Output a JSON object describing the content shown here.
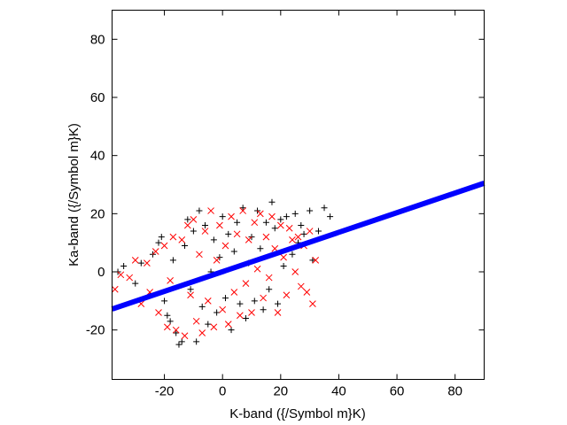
{
  "chart_data": {
    "type": "scatter",
    "title": "",
    "xlabel": "K-band ({/Symbol m}K)",
    "ylabel": "Ka-band ({/Symbol m}K)",
    "xlim": [
      -38,
      90
    ],
    "ylim": [
      -37,
      90
    ],
    "xticks": [
      -20,
      0,
      20,
      40,
      60,
      80
    ],
    "yticks": [
      -20,
      0,
      20,
      40,
      60,
      80
    ],
    "xtick_labels": [
      "-20",
      "0",
      "20",
      "40",
      "60",
      "80"
    ],
    "ytick_labels": [
      "-20",
      "0",
      "20",
      "40",
      "60",
      "80"
    ],
    "grid": false,
    "legend": "none",
    "series": [
      {
        "marker": "plus",
        "color": "#000000",
        "description": "dense cloud of points, roughly centred near (0, 0), spanning about x -35..38 and y -25..25",
        "values": [
          [
            -36,
            0
          ],
          [
            -34,
            2
          ],
          [
            -30,
            -4
          ],
          [
            -28,
            3
          ],
          [
            -25,
            -8
          ],
          [
            -24,
            6
          ],
          [
            -22,
            10
          ],
          [
            -21,
            12
          ],
          [
            -20,
            -10
          ],
          [
            -19,
            -15
          ],
          [
            -18,
            -17
          ],
          [
            -17,
            4
          ],
          [
            -16,
            -21
          ],
          [
            -15,
            -25
          ],
          [
            -14,
            -24
          ],
          [
            -13,
            9
          ],
          [
            -12,
            18
          ],
          [
            -11,
            -6
          ],
          [
            -10,
            14
          ],
          [
            -9,
            -24
          ],
          [
            -8,
            21
          ],
          [
            -7,
            -12
          ],
          [
            -6,
            16
          ],
          [
            -5,
            -18
          ],
          [
            -4,
            0
          ],
          [
            -3,
            11
          ],
          [
            -2,
            -14
          ],
          [
            -1,
            5
          ],
          [
            0,
            19
          ],
          [
            1,
            -9
          ],
          [
            2,
            13
          ],
          [
            3,
            -20
          ],
          [
            4,
            7
          ],
          [
            5,
            17
          ],
          [
            6,
            -11
          ],
          [
            7,
            22
          ],
          [
            8,
            -16
          ],
          [
            9,
            3
          ],
          [
            10,
            12
          ],
          [
            11,
            -10
          ],
          [
            12,
            21
          ],
          [
            13,
            8
          ],
          [
            14,
            -13
          ],
          [
            15,
            17
          ],
          [
            16,
            -6
          ],
          [
            17,
            24
          ],
          [
            18,
            15
          ],
          [
            19,
            -11
          ],
          [
            20,
            18
          ],
          [
            21,
            2
          ],
          [
            22,
            19
          ],
          [
            24,
            6
          ],
          [
            25,
            20
          ],
          [
            26,
            10
          ],
          [
            27,
            16
          ],
          [
            28,
            13
          ],
          [
            30,
            21
          ],
          [
            31,
            4
          ],
          [
            33,
            14
          ],
          [
            35,
            22
          ],
          [
            37,
            19
          ]
        ]
      },
      {
        "marker": "x",
        "color": "#ff0000",
        "description": "dense cloud of points, roughly centred near (0, 0), spanning about x -37..32 and y -22..22",
        "values": [
          [
            -37,
            -6
          ],
          [
            -35,
            -1
          ],
          [
            -32,
            -2
          ],
          [
            -30,
            4
          ],
          [
            -28,
            -11
          ],
          [
            -26,
            3
          ],
          [
            -25,
            -7
          ],
          [
            -23,
            7
          ],
          [
            -22,
            -14
          ],
          [
            -20,
            9
          ],
          [
            -19,
            -19
          ],
          [
            -18,
            -3
          ],
          [
            -17,
            12
          ],
          [
            -16,
            -20
          ],
          [
            -14,
            11
          ],
          [
            -13,
            -22
          ],
          [
            -12,
            16
          ],
          [
            -11,
            -8
          ],
          [
            -10,
            18
          ],
          [
            -9,
            -17
          ],
          [
            -8,
            6
          ],
          [
            -7,
            -21
          ],
          [
            -6,
            14
          ],
          [
            -5,
            -10
          ],
          [
            -4,
            21
          ],
          [
            -3,
            -19
          ],
          [
            -2,
            4
          ],
          [
            -1,
            16
          ],
          [
            0,
            -13
          ],
          [
            1,
            9
          ],
          [
            2,
            -18
          ],
          [
            3,
            19
          ],
          [
            4,
            -7
          ],
          [
            5,
            13
          ],
          [
            6,
            -15
          ],
          [
            7,
            21
          ],
          [
            8,
            -4
          ],
          [
            9,
            11
          ],
          [
            10,
            -14
          ],
          [
            11,
            17
          ],
          [
            12,
            1
          ],
          [
            13,
            20
          ],
          [
            14,
            -9
          ],
          [
            15,
            12
          ],
          [
            16,
            -2
          ],
          [
            17,
            19
          ],
          [
            18,
            8
          ],
          [
            19,
            -14
          ],
          [
            20,
            16
          ],
          [
            21,
            5
          ],
          [
            22,
            -8
          ],
          [
            23,
            15
          ],
          [
            24,
            11
          ],
          [
            25,
            0
          ],
          [
            26,
            12
          ],
          [
            27,
            -5
          ],
          [
            28,
            9
          ],
          [
            29,
            -7
          ],
          [
            30,
            14
          ],
          [
            31,
            -11
          ],
          [
            32,
            4
          ]
        ]
      },
      {
        "marker": "line",
        "color": "#0000ff",
        "description": "thick blue linear fit line",
        "values": [
          [
            -38,
            -12.8
          ],
          [
            90,
            30.5
          ]
        ]
      }
    ]
  }
}
